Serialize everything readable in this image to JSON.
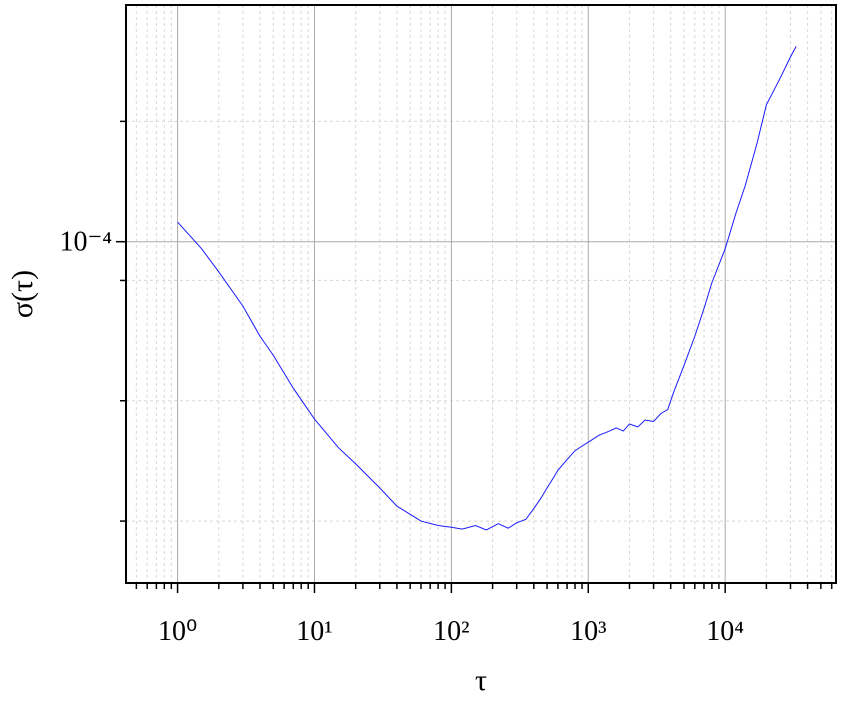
{
  "chart_data": {
    "type": "line",
    "x_label": "τ",
    "y_label": "σ(τ)",
    "xscale": "log",
    "yscale": "log",
    "grid": true,
    "minor_grid": true,
    "xlim": [
      0.42,
      64500
    ],
    "ylim": [
      1.4e-05,
      0.000391
    ],
    "xticks": [
      {
        "value": 1,
        "label": "10⁰"
      },
      {
        "value": 10,
        "label": "10¹"
      },
      {
        "value": 100,
        "label": "10²"
      },
      {
        "value": 1000,
        "label": "10³"
      },
      {
        "value": 10000,
        "label": "10⁴"
      }
    ],
    "yticks": [
      {
        "value": 0.0001,
        "label": "10⁻⁴"
      }
    ],
    "xminorticks": [
      0.5,
      0.6,
      0.7,
      0.8,
      0.9,
      2,
      3,
      4,
      5,
      6,
      7,
      8,
      9,
      20,
      30,
      40,
      50,
      60,
      70,
      80,
      90,
      200,
      300,
      400,
      500,
      600,
      700,
      800,
      900,
      2000,
      3000,
      4000,
      5000,
      6000,
      7000,
      8000,
      9000,
      20000,
      30000,
      40000,
      50000,
      60000
    ],
    "yminorticks": [
      2e-05,
      4e-05,
      8e-05,
      0.0002
    ],
    "series": [
      {
        "color": "#1a1aff",
        "x": [
          1,
          1.5,
          2,
          3,
          4,
          5,
          7,
          10,
          15,
          20,
          30,
          40,
          50,
          60,
          80,
          100,
          120,
          150,
          180,
          220,
          260,
          300,
          350,
          400,
          450,
          500,
          550,
          600,
          700,
          800,
          900,
          1000,
          1200,
          1400,
          1600,
          1800,
          2000,
          2300,
          2600,
          3000,
          3400,
          3800,
          4200,
          5000,
          6000,
          7000,
          8000,
          10000,
          12000,
          14000,
          17000,
          20000,
          25000,
          30000,
          33000
        ],
        "values": [
          0.000112,
          9.6e-05,
          8.4e-05,
          6.9e-05,
          5.8e-05,
          5.2e-05,
          4.3e-05,
          3.6e-05,
          3.05e-05,
          2.78e-05,
          2.42e-05,
          2.18e-05,
          2.08e-05,
          2e-05,
          1.95e-05,
          1.93e-05,
          1.91e-05,
          1.95e-05,
          1.9e-05,
          1.97e-05,
          1.92e-05,
          1.98e-05,
          2.02e-05,
          2.15e-05,
          2.28e-05,
          2.42e-05,
          2.55e-05,
          2.68e-05,
          2.85e-05,
          3e-05,
          3.08e-05,
          3.15e-05,
          3.28e-05,
          3.35e-05,
          3.42e-05,
          3.36e-05,
          3.5e-05,
          3.44e-05,
          3.58e-05,
          3.55e-05,
          3.72e-05,
          3.8e-05,
          4.2e-05,
          4.9e-05,
          5.8e-05,
          6.8e-05,
          7.9e-05,
          9.6e-05,
          0.000118,
          0.000138,
          0.000175,
          0.00022,
          0.000255,
          0.00029,
          0.000308
        ]
      }
    ]
  }
}
